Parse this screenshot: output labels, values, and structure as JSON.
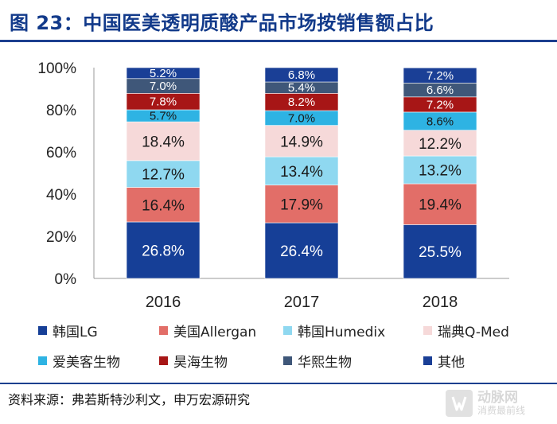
{
  "title": "图 23：中国医美透明质酸产品市场按销售额占比",
  "source": "资料来源：弗若斯特沙利文，申万宏源研究",
  "watermark": {
    "line1": "动脉网",
    "line2": "消费最前线"
  },
  "chart_data": {
    "type": "bar",
    "stacked": true,
    "percent": true,
    "categories": [
      "2016",
      "2017",
      "2018"
    ],
    "ylim": [
      0,
      100
    ],
    "yticks": [
      "0%",
      "20%",
      "40%",
      "60%",
      "80%",
      "100%"
    ],
    "grid": false,
    "legend_position": "bottom",
    "series": [
      {
        "name": "韩国LG",
        "values": [
          26.8,
          26.4,
          25.5
        ],
        "labels": [
          "26.8%",
          "26.4%",
          "25.5%"
        ],
        "color": "#163f97",
        "label_color": "#ffffff"
      },
      {
        "name": "美国Allergan",
        "values": [
          16.4,
          17.9,
          19.4
        ],
        "labels": [
          "16.4%",
          "17.9%",
          "19.4%"
        ],
        "color": "#e26e68",
        "label_color": "#1a1a1a"
      },
      {
        "name": "韩国Humedix",
        "values": [
          12.7,
          13.4,
          13.2
        ],
        "labels": [
          "12.7%",
          "13.4%",
          "13.2%"
        ],
        "color": "#8fd8f0",
        "label_color": "#1a1a1a"
      },
      {
        "name": "瑞典Q-Med",
        "values": [
          18.4,
          14.9,
          12.2
        ],
        "labels": [
          "18.4%",
          "14.9%",
          "12.2%"
        ],
        "color": "#f6d9d9",
        "label_color": "#1a1a1a"
      },
      {
        "name": "爱美客生物",
        "values": [
          5.7,
          7.0,
          8.6
        ],
        "labels": [
          "5.7%",
          "7.0%",
          "8.6%"
        ],
        "color": "#2eb3e3",
        "label_color": "#1a1a1a"
      },
      {
        "name": "昊海生物",
        "values": [
          7.8,
          8.2,
          7.2
        ],
        "labels": [
          "7.8%",
          "8.2%",
          "7.2%"
        ],
        "color": "#a71616",
        "label_color": "#ffffff"
      },
      {
        "name": "华熙生物",
        "values": [
          7.0,
          5.4,
          6.6
        ],
        "labels": [
          "7.0%",
          "5.4%",
          "6.6%"
        ],
        "color": "#3f5779",
        "label_color": "#ffffff"
      },
      {
        "name": "其他",
        "values": [
          5.2,
          6.8,
          7.2
        ],
        "labels": [
          "5.2%",
          "6.8%",
          "7.2%"
        ],
        "color": "#1a3f96",
        "label_color": "#ffffff"
      }
    ]
  }
}
